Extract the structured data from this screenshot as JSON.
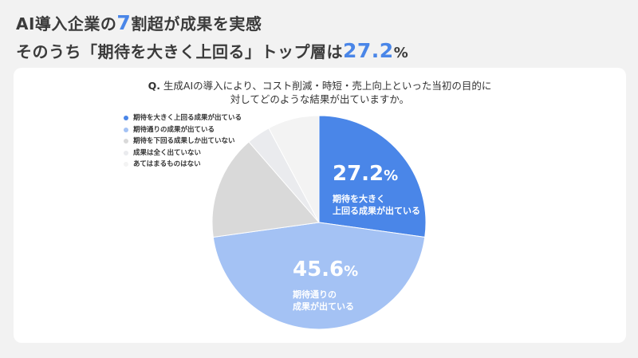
{
  "headline": {
    "line1": {
      "pre": "AI導入企業の",
      "accent": "7",
      "post": "割超が成果を実感"
    },
    "line2": {
      "pre": "そのうち「期待を大きく上回る」トップ層は",
      "accent": "27.2",
      "suffix": "%"
    }
  },
  "question": {
    "prefix": "Q.",
    "line1": "生成AIの導入により、コスト削減・時短・売上向上といった当初の目的に",
    "line2": "対してどのような結果が出ていますか。"
  },
  "legend": [
    {
      "label": "期待を大きく上回る成果が出ている",
      "color": "#4a86e8"
    },
    {
      "label": "期待通りの成果が出ている",
      "color": "#a4c2f4"
    },
    {
      "label": "期待を下回る成果しか出ていない",
      "color": "#d9d9d9"
    },
    {
      "label": "成果は全く出ていない",
      "color": "#eaebee"
    },
    {
      "label": "あてはまるものはない",
      "color": "#f3f3f3"
    }
  ],
  "slice_labels": {
    "s1": {
      "value": "27.2",
      "pct": "%",
      "desc1": "期待を大きく",
      "desc2": "上回る成果が出ている"
    },
    "s2": {
      "value": "45.6",
      "pct": "%",
      "desc1": "期待通りの",
      "desc2": "成果が出ている"
    }
  },
  "chart_data": {
    "type": "pie",
    "title": "Q. 生成AIの導入により、コスト削減・時短・売上向上といった当初の目的に対してどのような結果が出ていますか。",
    "categories": [
      "期待を大きく上回る成果が出ている",
      "期待通りの成果が出ている",
      "期待を下回る成果しか出ていない",
      "成果は全く出ていない",
      "あてはまるものはない"
    ],
    "values": [
      27.2,
      45.6,
      15.8,
      3.6,
      7.8
    ],
    "colors": [
      "#4a86e8",
      "#a4c2f4",
      "#d9d9d9",
      "#eaebee",
      "#f3f3f3"
    ],
    "annotations": [
      "27.2%",
      "45.6%"
    ],
    "legend_position": "upper-left",
    "start_angle": "12 o'clock, clockwise"
  }
}
